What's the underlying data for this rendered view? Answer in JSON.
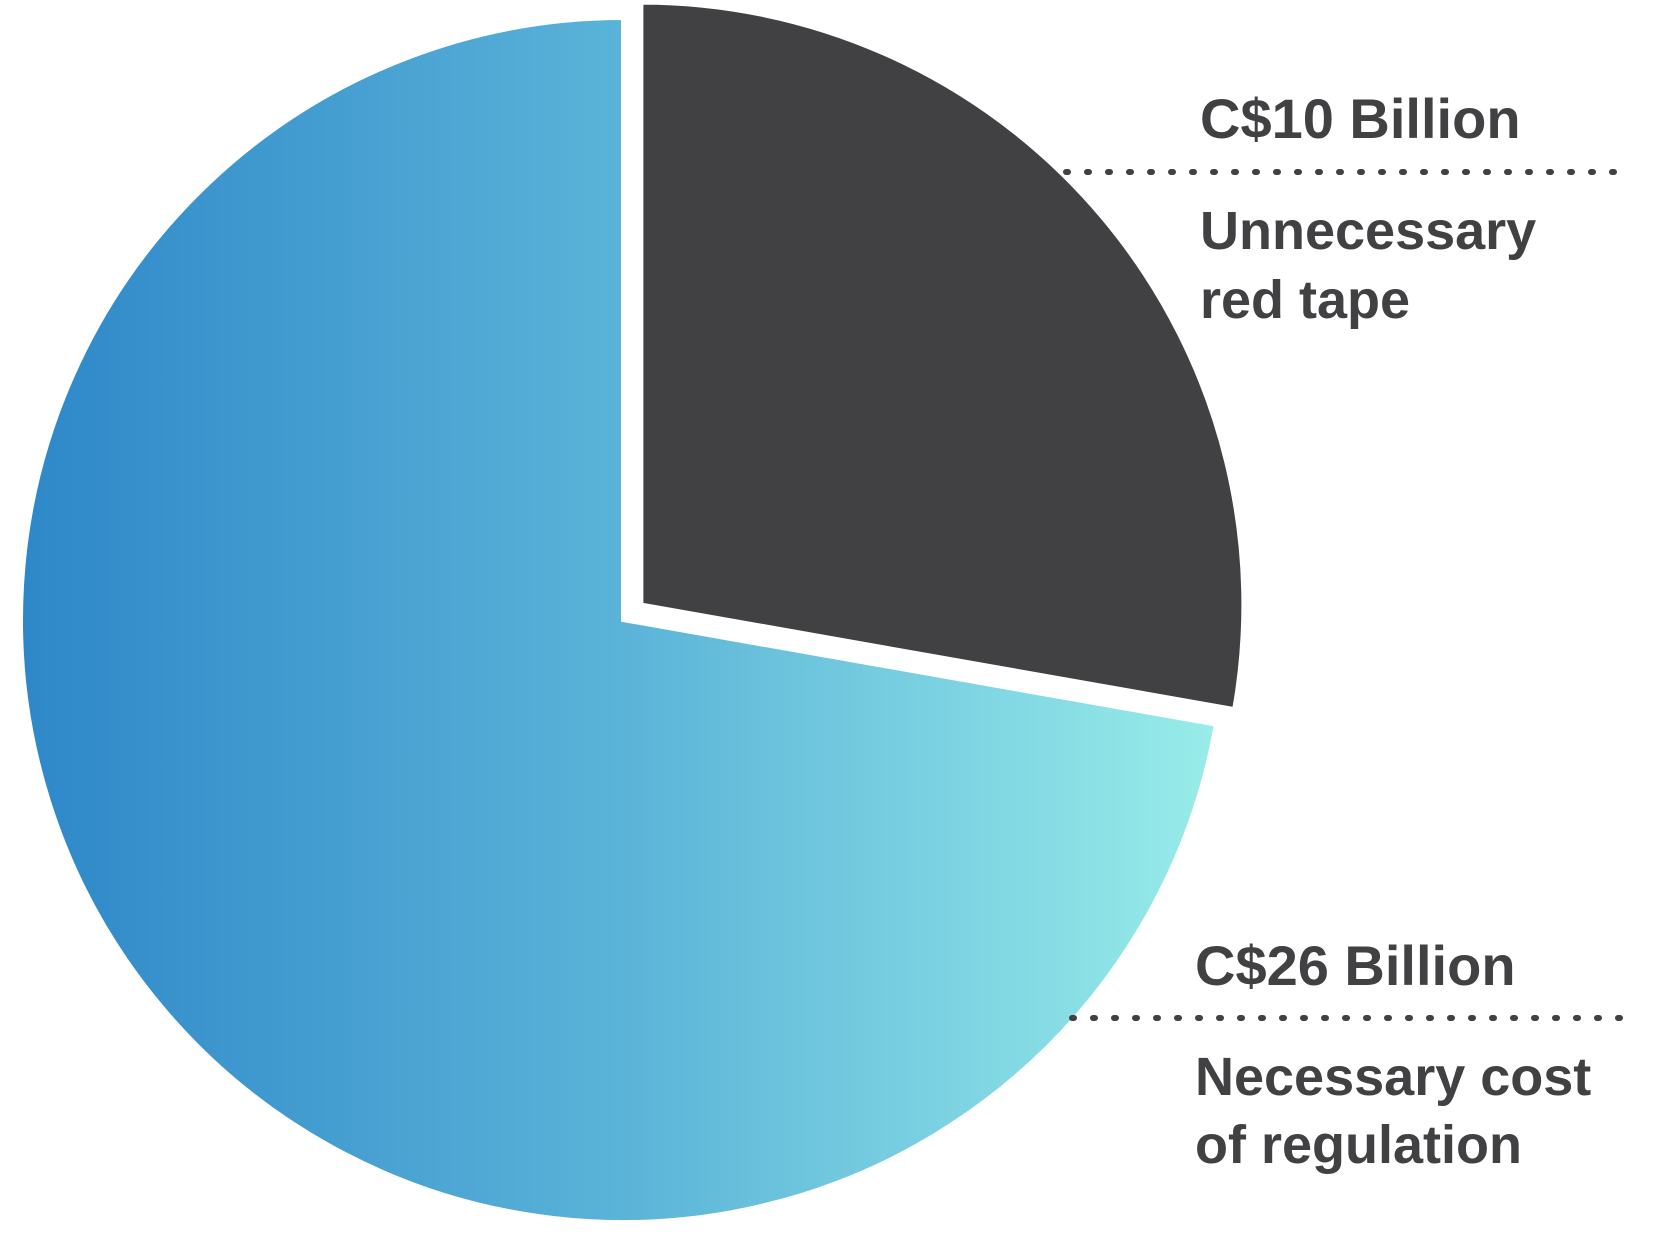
{
  "chart_data": {
    "type": "pie",
    "title": "",
    "unit": "C$ Billion",
    "start_angle": "12 o'clock",
    "direction": "clockwise",
    "colors": {
      "text": "#414143",
      "gap": "#ffffff"
    },
    "slices": [
      {
        "name": "Unnecessary red tape",
        "value": 10,
        "value_label": "C$10 Billion",
        "label_lines": [
          "Unnecessary",
          "red tape"
        ],
        "color": "#414143",
        "exploded": true
      },
      {
        "name": "Necessary cost of regulation",
        "value": 26,
        "value_label": "C$26 Billion",
        "label_lines": [
          "Necessary cost",
          "of regulation"
        ],
        "gradient": [
          "#2e87c8",
          "#5ab3d8",
          "#98ece9"
        ],
        "exploded": false
      }
    ]
  }
}
